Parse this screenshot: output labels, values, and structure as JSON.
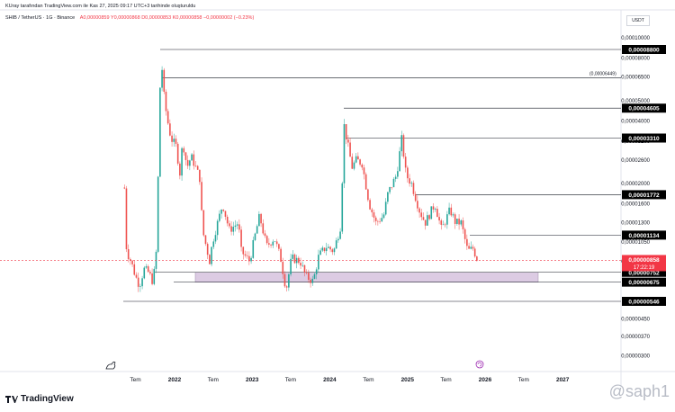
{
  "header": {
    "attribution": "KUray tarafından TradingView.com ile Kas 27, 2025 09:17 UTC+3 tarihinde oluşturuldu"
  },
  "legend": {
    "symbol": "SHIB / TetherUS · 1G · Binance",
    "ohlc": "A0,00000859 Y0,00000868 D0,00000853 K0,00000858 −0,00000002 (−0.23%)"
  },
  "currency_button": "USDT",
  "branding": {
    "logo": "TradingView",
    "watermark": "@saph1"
  },
  "colors": {
    "up": "#26a69a",
    "down": "#ef5350",
    "price_line": "#f23645",
    "zone_fill": "#d8c8e0",
    "axis_label_bg": "#000000"
  },
  "chart_data": {
    "type": "candlestick",
    "y_scale": "log",
    "y_ticks": [
      "0,00010000",
      "0,00008000",
      "0,00006500",
      "0,00005000",
      "0,00004000",
      "0,00003200",
      "0,00002600",
      "0,00002000",
      "0,00001600",
      "0,00001300",
      "0,00001050",
      "0,00000850",
      "0,00000450",
      "0,00000370",
      "0,00000300"
    ],
    "y_tick_values": [
      0.0001,
      8e-05,
      6.5e-05,
      5e-05,
      4e-05,
      3.2e-05,
      2.6e-05,
      2e-05,
      1.6e-05,
      1.3e-05,
      1.05e-05,
      8.5e-06,
      4.5e-06,
      3.7e-06,
      3e-06
    ],
    "x_ticks": [
      "Tem",
      "2022",
      "Tem",
      "2023",
      "Tem",
      "2024",
      "Tem",
      "2025",
      "Tem",
      "2026",
      "Tem",
      "2027"
    ],
    "level_labels": [
      {
        "label": "0,00008800",
        "value": 8.8e-05
      },
      {
        "label": "0,00004605",
        "value": 4.605e-05
      },
      {
        "label": "0,00003310",
        "value": 3.31e-05
      },
      {
        "label": "0,00001772",
        "value": 1.772e-05
      },
      {
        "label": "0,00001134",
        "value": 1.134e-05
      },
      {
        "label": "0,00000752",
        "value": 7.52e-06
      },
      {
        "label": "0,00000675",
        "value": 6.75e-06
      },
      {
        "label": "0,00000546",
        "value": 5.46e-06
      }
    ],
    "annotation": {
      "label": "(0,00006449)",
      "value": 6.449e-05
    },
    "current_price": {
      "label": "0,00000858",
      "value": 8.58e-06,
      "countdown": "17:22:19"
    },
    "support_zone": {
      "low": 6.75e-06,
      "high": 7.52e-06
    },
    "price_path": [
      [
        "2021-05-10",
        1.9e-05
      ],
      [
        "2021-05-20",
        9.5e-06
      ],
      [
        "2021-06-10",
        8.5e-06
      ],
      [
        "2021-07-01",
        7.2e-06
      ],
      [
        "2021-07-20",
        6.5e-06
      ],
      [
        "2021-08-10",
        7.8e-06
      ],
      [
        "2021-09-01",
        7.5e-06
      ],
      [
        "2021-09-20",
        6.8e-06
      ],
      [
        "2021-10-05",
        8.5e-06
      ],
      [
        "2021-10-20",
        3.2e-05
      ],
      [
        "2021-10-28",
        8.8e-05
      ],
      [
        "2021-11-10",
        5.5e-05
      ],
      [
        "2021-11-25",
        4.2e-05
      ],
      [
        "2021-12-15",
        3.3e-05
      ],
      [
        "2022-01-10",
        3e-05
      ],
      [
        "2022-01-25",
        2.2e-05
      ],
      [
        "2022-02-08",
        3.2e-05
      ],
      [
        "2022-03-01",
        2.4e-05
      ],
      [
        "2022-03-20",
        2.7e-05
      ],
      [
        "2022-04-10",
        2.4e-05
      ],
      [
        "2022-05-01",
        2.1e-05
      ],
      [
        "2022-05-12",
        1.2e-05
      ],
      [
        "2022-06-15",
        8.5e-06
      ],
      [
        "2022-06-28",
        1.05e-05
      ],
      [
        "2022-08-15",
        1.6e-05
      ],
      [
        "2022-09-15",
        1.2e-05
      ],
      [
        "2022-10-28",
        1.3e-05
      ],
      [
        "2022-11-10",
        9.5e-06
      ],
      [
        "2022-12-20",
        8.5e-06
      ],
      [
        "2023-01-20",
        1.2e-05
      ],
      [
        "2023-02-05",
        1.4e-05
      ],
      [
        "2023-03-10",
        1e-05
      ],
      [
        "2023-04-15",
        1.1e-05
      ],
      [
        "2023-05-15",
        8.8e-06
      ],
      [
        "2023-06-10",
        6.2e-06
      ],
      [
        "2023-07-05",
        8.8e-06
      ],
      [
        "2023-08-15",
        8.5e-06
      ],
      [
        "2023-09-10",
        7.2e-06
      ],
      [
        "2023-10-15",
        6.8e-06
      ],
      [
        "2023-11-10",
        9e-06
      ],
      [
        "2023-12-15",
        1e-05
      ],
      [
        "2024-01-20",
        9.5e-06
      ],
      [
        "2024-02-25",
        1.3e-05
      ],
      [
        "2024-03-05",
        4e-05
      ],
      [
        "2024-03-25",
        3.1e-05
      ],
      [
        "2024-04-15",
        2.4e-05
      ],
      [
        "2024-05-05",
        2.6e-05
      ],
      [
        "2024-06-01",
        2.5e-05
      ],
      [
        "2024-07-05",
        1.6e-05
      ],
      [
        "2024-08-05",
        1.3e-05
      ],
      [
        "2024-09-10",
        1.4e-05
      ],
      [
        "2024-10-01",
        1.8e-05
      ],
      [
        "2024-11-10",
        2.2e-05
      ],
      [
        "2024-12-05",
        3.3e-05
      ],
      [
        "2024-12-25",
        2.2e-05
      ],
      [
        "2025-01-20",
        2e-05
      ],
      [
        "2025-02-25",
        1.5e-05
      ],
      [
        "2025-03-25",
        1.3e-05
      ],
      [
        "2025-05-10",
        1.6e-05
      ],
      [
        "2025-06-10",
        1.2e-05
      ],
      [
        "2025-07-20",
        1.5e-05
      ],
      [
        "2025-08-15",
        1.3e-05
      ],
      [
        "2025-09-10",
        1.3e-05
      ],
      [
        "2025-10-11",
        9.5e-06
      ],
      [
        "2025-11-05",
        9.8e-06
      ],
      [
        "2025-11-27",
        8.58e-06
      ]
    ]
  }
}
